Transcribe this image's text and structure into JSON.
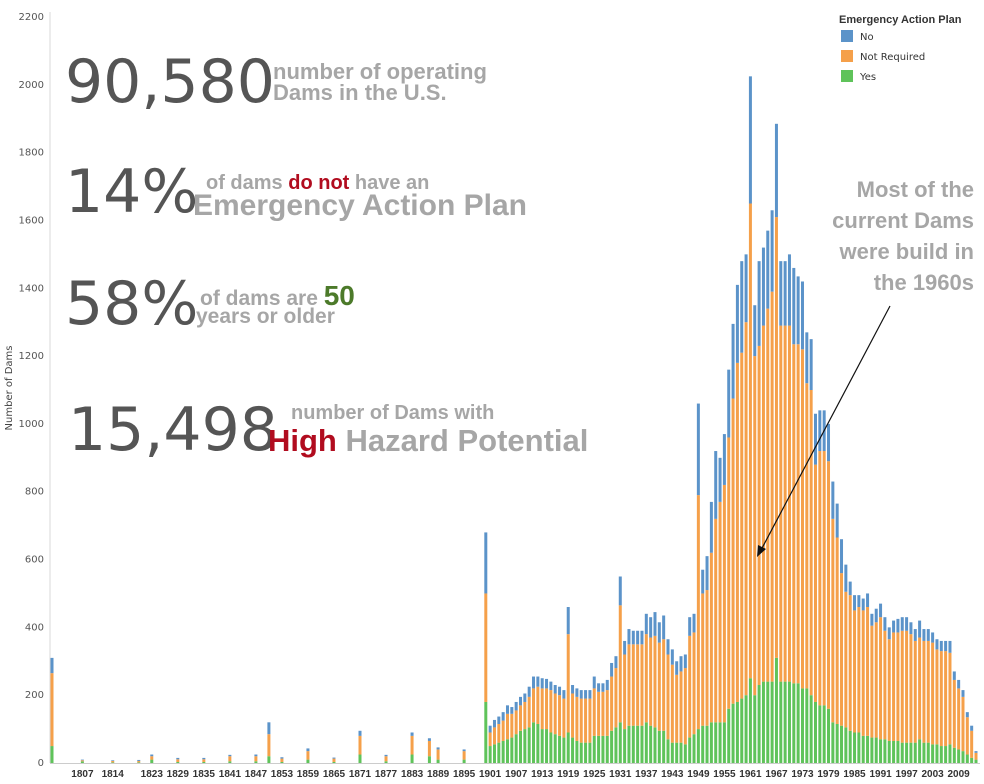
{
  "chart_data": {
    "type": "bar",
    "stacked": true,
    "ylabel": "Number of Dams",
    "ylim": [
      0,
      2200
    ],
    "yticks": [
      0,
      200,
      400,
      600,
      800,
      1000,
      1200,
      1400,
      1600,
      1800,
      2000,
      2200
    ],
    "x_tick_labels": [
      "1807",
      "1814",
      "1823",
      "1829",
      "1835",
      "1841",
      "1847",
      "1853",
      "1859",
      "1865",
      "1871",
      "1877",
      "1883",
      "1889",
      "1895",
      "1901",
      "1907",
      "1913",
      "1919",
      "1925",
      "1931",
      "1937",
      "1943",
      "1949",
      "1955",
      "1961",
      "1967",
      "1973",
      "1979",
      "1985",
      "1991",
      "1997",
      "2003",
      "2009"
    ],
    "legend": {
      "title": "Emergency Action Plan",
      "placement": "top-right",
      "items": [
        {
          "name": "No",
          "color": "#5b93c9"
        },
        {
          "name": "Not Required",
          "color": "#f5a04a"
        },
        {
          "name": "Yes",
          "color": "#5fc35a"
        }
      ]
    },
    "categories": [
      "1800",
      "1807",
      "1814",
      "1820",
      "1823",
      "1829",
      "1835",
      "1841",
      "1847",
      "1850",
      "1853",
      "1859",
      "1865",
      "1871",
      "1877",
      "1883",
      "1887",
      "1889",
      "1895",
      "1900",
      "1901",
      "1902",
      "1903",
      "1904",
      "1905",
      "1906",
      "1907",
      "1908",
      "1909",
      "1910",
      "1911",
      "1912",
      "1913",
      "1914",
      "1915",
      "1916",
      "1917",
      "1918",
      "1919",
      "1920",
      "1921",
      "1922",
      "1923",
      "1924",
      "1925",
      "1926",
      "1927",
      "1928",
      "1929",
      "1930",
      "1931",
      "1932",
      "1933",
      "1934",
      "1935",
      "1936",
      "1937",
      "1938",
      "1939",
      "1940",
      "1941",
      "1942",
      "1943",
      "1944",
      "1945",
      "1946",
      "1947",
      "1948",
      "1949",
      "1950",
      "1951",
      "1952",
      "1953",
      "1954",
      "1955",
      "1956",
      "1957",
      "1958",
      "1959",
      "1960",
      "1961",
      "1962",
      "1963",
      "1964",
      "1965",
      "1966",
      "1967",
      "1968",
      "1969",
      "1970",
      "1971",
      "1972",
      "1973",
      "1974",
      "1975",
      "1976",
      "1977",
      "1978",
      "1979",
      "1980",
      "1981",
      "1982",
      "1983",
      "1984",
      "1985",
      "1986",
      "1987",
      "1988",
      "1989",
      "1990",
      "1991",
      "1992",
      "1993",
      "1994",
      "1995",
      "1996",
      "1997",
      "1998",
      "1999",
      "2000",
      "2001",
      "2002",
      "2003",
      "2004",
      "2005",
      "2006",
      "2007",
      "2008",
      "2009",
      "2010",
      "2011",
      "2012",
      "2013"
    ],
    "series": [
      {
        "name": "No",
        "values": [
          45,
          2,
          2,
          3,
          5,
          4,
          4,
          4,
          5,
          35,
          4,
          8,
          3,
          15,
          4,
          10,
          8,
          6,
          5,
          180,
          20,
          22,
          22,
          25,
          25,
          20,
          25,
          25,
          25,
          30,
          35,
          30,
          30,
          28,
          25,
          25,
          25,
          25,
          80,
          25,
          25,
          25,
          25,
          25,
          35,
          25,
          25,
          30,
          40,
          35,
          85,
          40,
          45,
          40,
          40,
          40,
          60,
          60,
          70,
          60,
          70,
          45,
          45,
          40,
          45,
          40,
          55,
          55,
          270,
          70,
          100,
          150,
          200,
          130,
          150,
          200,
          220,
          230,
          270,
          200,
          375,
          150,
          250,
          230,
          230,
          240,
          275,
          190,
          190,
          210,
          225,
          200,
          200,
          150,
          150,
          150,
          120,
          120,
          110,
          110,
          100,
          100,
          80,
          40,
          45,
          35,
          35,
          40,
          35,
          40,
          40,
          40,
          35,
          35,
          40,
          40,
          40,
          35,
          35,
          50,
          35,
          35,
          30,
          30,
          30,
          30,
          35,
          25,
          25,
          20,
          15,
          15,
          5
        ]
      },
      {
        "name": "Not Required",
        "values": [
          215,
          3,
          4,
          4,
          10,
          8,
          8,
          15,
          15,
          65,
          10,
          25,
          10,
          55,
          15,
          55,
          45,
          30,
          25,
          320,
          40,
          50,
          55,
          60,
          75,
          70,
          70,
          75,
          80,
          90,
          100,
          110,
          120,
          120,
          125,
          120,
          120,
          115,
          290,
          130,
          130,
          130,
          130,
          130,
          140,
          130,
          130,
          135,
          160,
          175,
          345,
          220,
          240,
          240,
          240,
          240,
          260,
          260,
          270,
          260,
          270,
          250,
          230,
          200,
          210,
          225,
          300,
          300,
          690,
          390,
          400,
          500,
          600,
          650,
          700,
          800,
          900,
          1000,
          1020,
          1100,
          1400,
          1000,
          1000,
          1050,
          1100,
          1150,
          1300,
          1050,
          1050,
          1050,
          1000,
          1000,
          1000,
          900,
          900,
          700,
          750,
          750,
          730,
          600,
          550,
          450,
          400,
          400,
          360,
          370,
          370,
          380,
          330,
          340,
          360,
          320,
          300,
          320,
          320,
          330,
          330,
          320,
          300,
          300,
          300,
          300,
          300,
          280,
          280,
          280,
          270,
          200,
          180,
          160,
          110,
          80,
          20
        ]
      },
      {
        "name": "Yes",
        "values": [
          50,
          5,
          2,
          2,
          10,
          3,
          3,
          5,
          5,
          20,
          3,
          10,
          3,
          25,
          5,
          25,
          20,
          10,
          10,
          180,
          50,
          55,
          60,
          65,
          70,
          75,
          85,
          95,
          100,
          105,
          120,
          115,
          100,
          100,
          90,
          85,
          80,
          75,
          90,
          75,
          65,
          60,
          60,
          60,
          80,
          80,
          80,
          80,
          95,
          105,
          120,
          100,
          110,
          110,
          110,
          110,
          120,
          110,
          105,
          95,
          95,
          70,
          60,
          60,
          60,
          55,
          75,
          85,
          100,
          110,
          110,
          120,
          120,
          120,
          120,
          160,
          175,
          180,
          190,
          200,
          250,
          200,
          230,
          240,
          240,
          240,
          310,
          240,
          240,
          240,
          235,
          235,
          220,
          220,
          200,
          180,
          170,
          170,
          160,
          120,
          115,
          110,
          105,
          95,
          90,
          90,
          80,
          80,
          75,
          75,
          70,
          70,
          65,
          65,
          65,
          60,
          60,
          60,
          60,
          70,
          60,
          60,
          55,
          55,
          50,
          50,
          55,
          45,
          40,
          35,
          25,
          15,
          10
        ]
      }
    ]
  },
  "kpis": {
    "dams": {
      "value": "90,580",
      "line1": "number of operating",
      "line2": "Dams in the U.S."
    },
    "eap": {
      "value": "14%",
      "pre": "of dams ",
      "emph": "do not",
      "post": " have an",
      "line2": "Emergency Action Plan"
    },
    "age": {
      "value": "58%",
      "pre": "of dams are ",
      "emph": "50",
      "line2": "years or older"
    },
    "hazard": {
      "value": "15,498",
      "line1": "number of Dams with",
      "emph": "High",
      "post": " Hazard Potential"
    }
  },
  "annotation": {
    "lines": [
      "Most of the",
      "current Dams",
      "were build in",
      "the 1960s"
    ]
  }
}
